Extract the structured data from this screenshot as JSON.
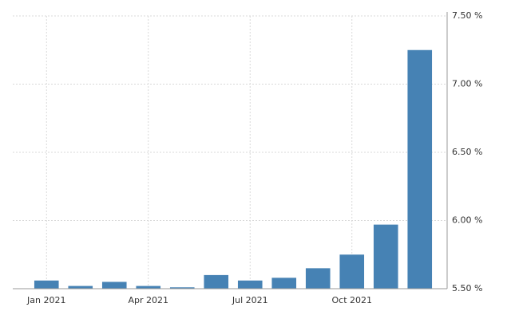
{
  "chart_data": {
    "type": "bar",
    "categories": [
      "Jan 2021",
      null,
      null,
      "Apr 2021",
      null,
      null,
      "Jul 2021",
      null,
      null,
      "Oct 2021",
      null,
      null
    ],
    "values": [
      5.56,
      5.52,
      5.55,
      5.52,
      5.51,
      5.6,
      5.56,
      5.58,
      5.65,
      5.75,
      5.97,
      7.25
    ],
    "color": "#4682b4",
    "ylim": [
      5.5,
      7.5
    ],
    "yticks": [
      {
        "value": 5.5,
        "label": "5.50 %"
      },
      {
        "value": 6.0,
        "label": "6.00 %"
      },
      {
        "value": 6.5,
        "label": "6.50 %"
      },
      {
        "value": 7.0,
        "label": "7.00 %"
      },
      {
        "value": 7.5,
        "label": "7.50 %"
      }
    ],
    "grid": true
  }
}
